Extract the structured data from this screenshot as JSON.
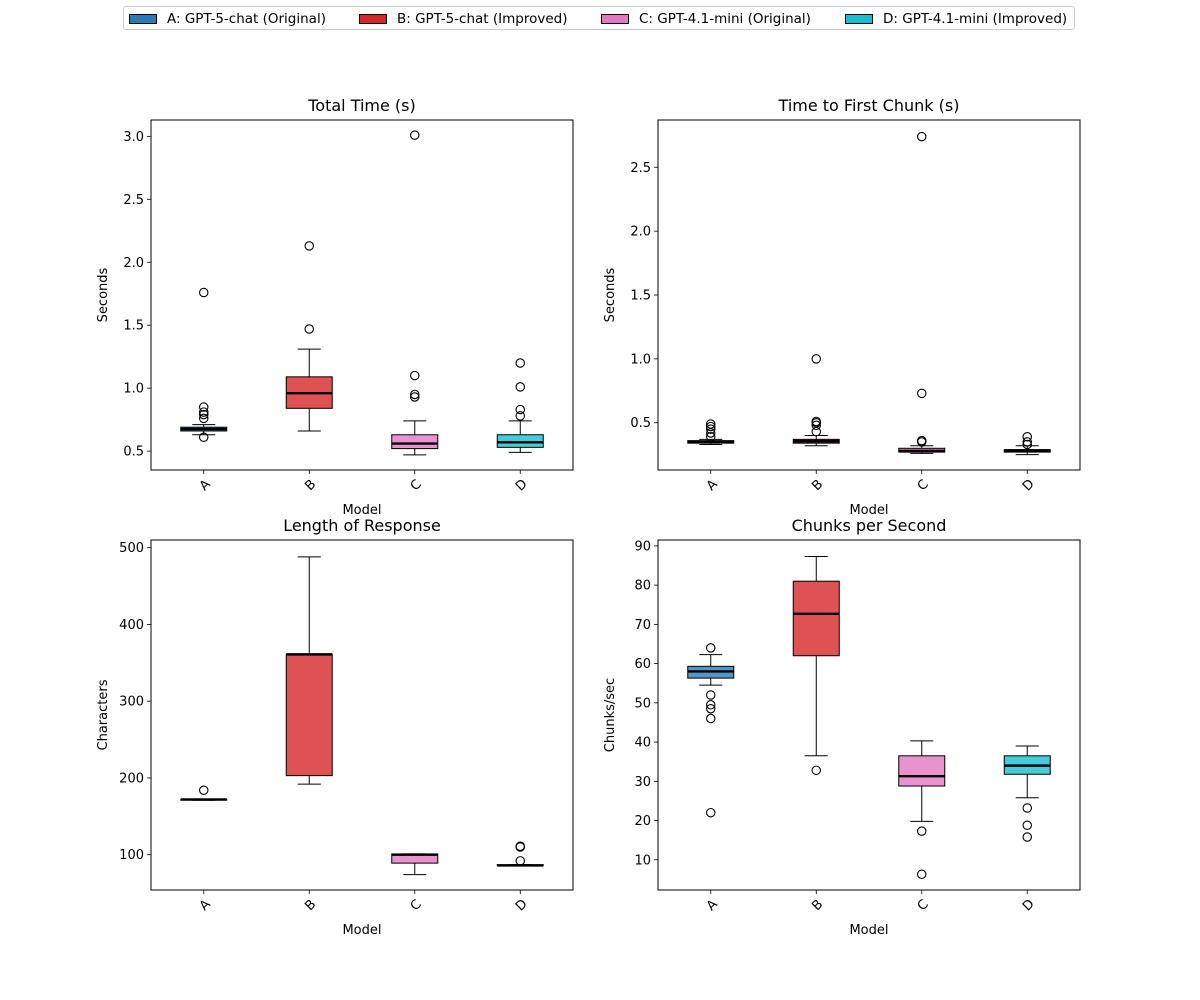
{
  "legend": [
    {
      "key": "A",
      "label": "A: GPT-5-chat (Original)",
      "color": "#2a7ab8"
    },
    {
      "key": "B",
      "label": "B: GPT-5-chat (Improved)",
      "color": "#d62728"
    },
    {
      "key": "C",
      "label": "C: GPT-4.1-mini (Original)",
      "color": "#e377c2"
    },
    {
      "key": "D",
      "label": "D: GPT-4.1-mini (Improved)",
      "color": "#17becf"
    }
  ],
  "chart_data": [
    {
      "type": "box",
      "title": "Total Time (s)",
      "xlabel": "Model",
      "ylabel": "Seconds",
      "categories": [
        "A",
        "B",
        "C",
        "D"
      ],
      "ylim": [
        0.35,
        3.13
      ],
      "yticks": [
        0.5,
        1.0,
        1.5,
        2.0,
        2.5,
        3.0
      ],
      "ytick_labels": [
        "0.5",
        "1.0",
        "1.5",
        "2.0",
        "2.5",
        "3.0"
      ],
      "boxes": [
        {
          "whislo": 0.63,
          "q1": 0.66,
          "med": 0.675,
          "q3": 0.69,
          "whishi": 0.71,
          "fliers": [
            1.76,
            0.85,
            0.81,
            0.79,
            0.76,
            0.61
          ]
        },
        {
          "whislo": 0.66,
          "q1": 0.84,
          "med": 0.96,
          "q3": 1.09,
          "whishi": 1.31,
          "fliers": [
            2.13,
            1.47
          ]
        },
        {
          "whislo": 0.47,
          "q1": 0.52,
          "med": 0.56,
          "q3": 0.63,
          "whishi": 0.74,
          "fliers": [
            3.01,
            1.1,
            0.95,
            0.93
          ]
        },
        {
          "whislo": 0.49,
          "q1": 0.53,
          "med": 0.57,
          "q3": 0.63,
          "whishi": 0.74,
          "fliers": [
            1.2,
            1.01,
            0.83,
            0.78
          ]
        }
      ]
    },
    {
      "type": "box",
      "title": "Time to First Chunk (s)",
      "xlabel": "Model",
      "ylabel": "Seconds",
      "categories": [
        "A",
        "B",
        "C",
        "D"
      ],
      "ylim": [
        0.13,
        2.87
      ],
      "yticks": [
        0.5,
        1.0,
        1.5,
        2.0,
        2.5
      ],
      "ytick_labels": [
        "0.5",
        "1.0",
        "1.5",
        "2.0",
        "2.5"
      ],
      "boxes": [
        {
          "whislo": 0.33,
          "q1": 0.34,
          "med": 0.35,
          "q3": 0.36,
          "whishi": 0.37,
          "fliers": [
            0.49,
            0.47,
            0.45,
            0.42,
            0.39
          ]
        },
        {
          "whislo": 0.32,
          "q1": 0.34,
          "med": 0.355,
          "q3": 0.37,
          "whishi": 0.4,
          "fliers": [
            1.0,
            0.51,
            0.5,
            0.48,
            0.43
          ]
        },
        {
          "whislo": 0.26,
          "q1": 0.27,
          "med": 0.28,
          "q3": 0.3,
          "whishi": 0.32,
          "fliers": [
            2.74,
            0.73,
            0.36,
            0.35
          ]
        },
        {
          "whislo": 0.25,
          "q1": 0.27,
          "med": 0.28,
          "q3": 0.29,
          "whishi": 0.32,
          "fliers": [
            0.39,
            0.35,
            0.33
          ]
        }
      ]
    },
    {
      "type": "box",
      "title": "Length of Response",
      "xlabel": "Model",
      "ylabel": "Characters",
      "categories": [
        "A",
        "B",
        "C",
        "D"
      ],
      "ylim": [
        54,
        510
      ],
      "yticks": [
        100,
        200,
        300,
        400,
        500
      ],
      "ytick_labels": [
        "100",
        "200",
        "300",
        "400",
        "500"
      ],
      "boxes": [
        {
          "whislo": 171,
          "q1": 171,
          "med": 172,
          "q3": 172,
          "whishi": 172,
          "fliers": [
            184
          ]
        },
        {
          "whislo": 192,
          "q1": 203,
          "med": 361,
          "q3": 361,
          "whishi": 488,
          "fliers": []
        },
        {
          "whislo": 74,
          "q1": 89,
          "med": 100,
          "q3": 101,
          "whishi": 101,
          "fliers": []
        },
        {
          "whislo": 86,
          "q1": 86,
          "med": 86,
          "q3": 87,
          "whishi": 87,
          "fliers": [
            111,
            110,
            92
          ]
        }
      ]
    },
    {
      "type": "box",
      "title": "Chunks per Second",
      "xlabel": "Model",
      "ylabel": "Chunks/sec",
      "categories": [
        "A",
        "B",
        "C",
        "D"
      ],
      "ylim": [
        2.3,
        91.5
      ],
      "yticks": [
        10,
        20,
        30,
        40,
        50,
        60,
        70,
        80,
        90
      ],
      "ytick_labels": [
        "10",
        "20",
        "30",
        "40",
        "50",
        "60",
        "70",
        "80",
        "90"
      ],
      "boxes": [
        {
          "whislo": 54.5,
          "q1": 56.3,
          "med": 58.0,
          "q3": 59.3,
          "whishi": 62.3,
          "fliers": [
            64.0,
            52.0,
            49.5,
            48.5,
            46.0,
            22.0
          ]
        },
        {
          "whislo": 36.5,
          "q1": 62.0,
          "med": 72.7,
          "q3": 81.0,
          "whishi": 87.3,
          "fliers": [
            32.8
          ]
        },
        {
          "whislo": 19.8,
          "q1": 28.8,
          "med": 31.3,
          "q3": 36.5,
          "whishi": 40.3,
          "fliers": [
            17.3,
            6.3
          ]
        },
        {
          "whislo": 25.8,
          "q1": 31.8,
          "med": 34.0,
          "q3": 36.5,
          "whishi": 39.0,
          "fliers": [
            23.2,
            18.8,
            15.8
          ]
        }
      ]
    }
  ]
}
